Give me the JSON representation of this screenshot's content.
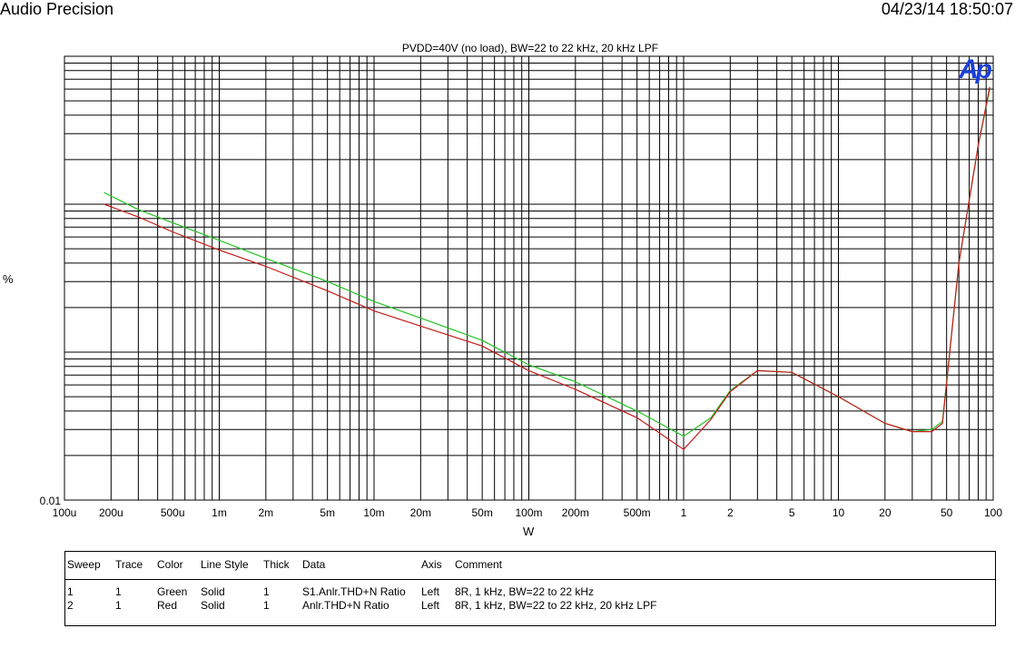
{
  "header": {
    "left": "Audio Precision",
    "right": "04/23/14 18:50:07"
  },
  "logo_text": "Ap",
  "chart_data": {
    "type": "line",
    "title": "PVDD=40V (no load), BW=22 to 22 kHz, 20 kHz LPF",
    "xlabel": "W",
    "ylabel": "%",
    "x_scale": "log",
    "y_scale": "log",
    "xlim": [
      0.0001,
      100
    ],
    "ylim": [
      0.01,
      10
    ],
    "grid": true,
    "x_tick_labels": [
      {
        "v": 0.0001,
        "t": "100u"
      },
      {
        "v": 0.0002,
        "t": "200u"
      },
      {
        "v": 0.0005,
        "t": "500u"
      },
      {
        "v": 0.001,
        "t": "1m"
      },
      {
        "v": 0.002,
        "t": "2m"
      },
      {
        "v": 0.005,
        "t": "5m"
      },
      {
        "v": 0.01,
        "t": "10m"
      },
      {
        "v": 0.02,
        "t": "20m"
      },
      {
        "v": 0.05,
        "t": "50m"
      },
      {
        "v": 0.1,
        "t": "100m"
      },
      {
        "v": 0.2,
        "t": "200m"
      },
      {
        "v": 0.5,
        "t": "500m"
      },
      {
        "v": 1,
        "t": "1"
      },
      {
        "v": 2,
        "t": "2"
      },
      {
        "v": 5,
        "t": "5"
      },
      {
        "v": 10,
        "t": "10"
      },
      {
        "v": 20,
        "t": "20"
      },
      {
        "v": 50,
        "t": "50"
      },
      {
        "v": 100,
        "t": "100"
      }
    ],
    "y_tick_labels": [
      {
        "v": 0.01,
        "t": "0.01"
      }
    ],
    "series": [
      {
        "color": "#22c422",
        "points": [
          [
            0.00018,
            1.2
          ],
          [
            0.0003,
            0.92
          ],
          [
            0.0005,
            0.75
          ],
          [
            0.001,
            0.57
          ],
          [
            0.002,
            0.43
          ],
          [
            0.005,
            0.3
          ],
          [
            0.01,
            0.22
          ],
          [
            0.02,
            0.17
          ],
          [
            0.05,
            0.12
          ],
          [
            0.1,
            0.082
          ],
          [
            0.2,
            0.063
          ],
          [
            0.5,
            0.04
          ],
          [
            1,
            0.027
          ],
          [
            1.5,
            0.036
          ],
          [
            2,
            0.055
          ],
          [
            3,
            0.075
          ],
          [
            5,
            0.073
          ],
          [
            10,
            0.05
          ],
          [
            20,
            0.033
          ],
          [
            30,
            0.029
          ],
          [
            40,
            0.03
          ],
          [
            47,
            0.034
          ],
          [
            60,
            0.4
          ],
          [
            80,
            2.5
          ],
          [
            95,
            6.0
          ]
        ]
      },
      {
        "color": "#c41a1a",
        "points": [
          [
            0.00018,
            1.0
          ],
          [
            0.0003,
            0.82
          ],
          [
            0.0005,
            0.65
          ],
          [
            0.001,
            0.49
          ],
          [
            0.002,
            0.38
          ],
          [
            0.005,
            0.26
          ],
          [
            0.01,
            0.19
          ],
          [
            0.02,
            0.15
          ],
          [
            0.05,
            0.11
          ],
          [
            0.1,
            0.075
          ],
          [
            0.2,
            0.056
          ],
          [
            0.5,
            0.036
          ],
          [
            1,
            0.022
          ],
          [
            1.5,
            0.035
          ],
          [
            2,
            0.054
          ],
          [
            3,
            0.075
          ],
          [
            5,
            0.073
          ],
          [
            10,
            0.05
          ],
          [
            20,
            0.033
          ],
          [
            30,
            0.029
          ],
          [
            40,
            0.029
          ],
          [
            47,
            0.033
          ],
          [
            60,
            0.4
          ],
          [
            80,
            2.5
          ],
          [
            95,
            6.2
          ]
        ]
      }
    ]
  },
  "legend": {
    "headers": [
      "Sweep",
      "Trace",
      "Color",
      "Line Style",
      "Thick",
      "Data",
      "Axis",
      "Comment"
    ],
    "rows": [
      [
        "1",
        "1",
        "Green",
        "Solid",
        "1",
        "S1.Anlr.THD+N Ratio",
        "Left",
        "8R, 1 kHz, BW=22 to 22 kHz"
      ],
      [
        "2",
        "1",
        "Red",
        "Solid",
        "1",
        "Anlr.THD+N Ratio",
        "Left",
        "8R, 1 kHz, BW=22 to 22 kHz, 20 kHz LPF"
      ]
    ]
  }
}
